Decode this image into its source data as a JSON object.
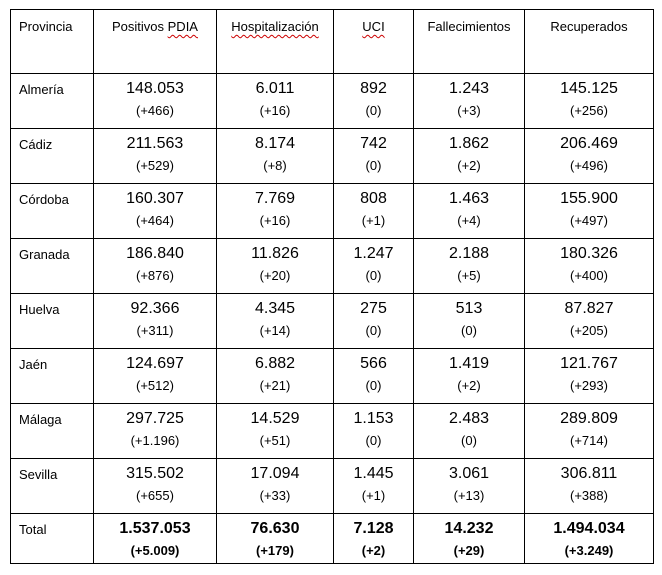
{
  "document": {
    "background": "#ffffff"
  },
  "colors": {
    "border": "#000000",
    "text": "#000000",
    "spell_underline": "#cc0000"
  },
  "table": {
    "columns": [
      {
        "key": "provincia",
        "parts": [
          {
            "text": "Provincia",
            "misspelled": false
          }
        ]
      },
      {
        "key": "positivos-pdia",
        "parts": [
          {
            "text": "Positivos ",
            "misspelled": false
          },
          {
            "text": "PDIA",
            "misspelled": true
          }
        ]
      },
      {
        "key": "hospitalizacion",
        "parts": [
          {
            "text": "Hospitalización",
            "misspelled": true
          }
        ]
      },
      {
        "key": "uci",
        "parts": [
          {
            "text": "UCI",
            "misspelled": true
          }
        ]
      },
      {
        "key": "fallecimientos",
        "parts": [
          {
            "text": "Fallecimientos",
            "misspelled": false
          }
        ]
      },
      {
        "key": "recuperados",
        "parts": [
          {
            "text": "Recuperados",
            "misspelled": false
          }
        ]
      }
    ],
    "rows": [
      {
        "province": "Almería",
        "values": [
          "148.053",
          "6.011",
          "892",
          "1.243",
          "145.125"
        ],
        "deltas": [
          "(+466)",
          "(+16)",
          "(0)",
          "(+3)",
          "(+256)"
        ]
      },
      {
        "province": "Cádiz",
        "values": [
          "211.563",
          "8.174",
          "742",
          "1.862",
          "206.469"
        ],
        "deltas": [
          "(+529)",
          "(+8)",
          "(0)",
          "(+2)",
          "(+496)"
        ]
      },
      {
        "province": "Córdoba",
        "values": [
          "160.307",
          "7.769",
          "808",
          "1.463",
          "155.900"
        ],
        "deltas": [
          "(+464)",
          "(+16)",
          "(+1)",
          "(+4)",
          "(+497)"
        ]
      },
      {
        "province": "Granada",
        "values": [
          "186.840",
          "11.826",
          "1.247",
          "2.188",
          "180.326"
        ],
        "deltas": [
          "(+876)",
          "(+20)",
          "(0)",
          "(+5)",
          "(+400)"
        ]
      },
      {
        "province": "Huelva",
        "values": [
          "92.366",
          "4.345",
          "275",
          "513",
          "87.827"
        ],
        "deltas": [
          "(+311)",
          "(+14)",
          "(0)",
          "(0)",
          "(+205)"
        ]
      },
      {
        "province": "Jaén",
        "values": [
          "124.697",
          "6.882",
          "566",
          "1.419",
          "121.767"
        ],
        "deltas": [
          "(+512)",
          "(+21)",
          "(0)",
          "(+2)",
          "(+293)"
        ]
      },
      {
        "province": "Málaga",
        "values": [
          "297.725",
          "14.529",
          "1.153",
          "2.483",
          "289.809"
        ],
        "deltas": [
          "(+1.196)",
          "(+51)",
          "(0)",
          "(0)",
          "(+714)"
        ]
      },
      {
        "province": "Sevilla",
        "values": [
          "315.502",
          "17.094",
          "1.445",
          "3.061",
          "306.811"
        ],
        "deltas": [
          "(+655)",
          "(+33)",
          "(+1)",
          "(+13)",
          "(+388)"
        ]
      }
    ],
    "total": {
      "label": "Total",
      "values": [
        "1.537.053",
        "76.630",
        "7.128",
        "14.232",
        "1.494.034"
      ],
      "deltas": [
        "(+5.009)",
        "(+179)",
        "(+2)",
        "(+29)",
        "(+3.249)"
      ]
    }
  }
}
